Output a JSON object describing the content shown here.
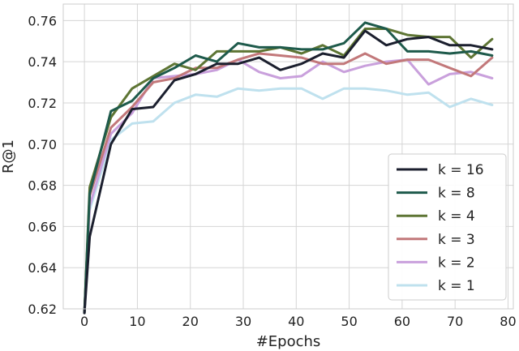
{
  "chart_data": {
    "type": "line",
    "xlabel": "#Epochs",
    "ylabel": "R@1",
    "xlim": [
      -4,
      81
    ],
    "ylim": [
      0.62,
      0.768
    ],
    "xticks": [
      "0",
      "10",
      "20",
      "30",
      "40",
      "50",
      "60",
      "70",
      "80"
    ],
    "yticks": [
      "0.62",
      "0.64",
      "0.66",
      "0.68",
      "0.70",
      "0.72",
      "0.74",
      "0.76"
    ],
    "grid": true,
    "legend": "lower-right",
    "x": [
      0,
      1,
      5,
      9,
      13,
      17,
      21,
      25,
      29,
      33,
      37,
      41,
      45,
      49,
      53,
      57,
      61,
      65,
      69,
      73,
      77
    ],
    "series": [
      {
        "name": "k = 16",
        "color": "#1b1f2e",
        "values": [
          0.618,
          0.655,
          0.7,
          0.717,
          0.718,
          0.731,
          0.734,
          0.739,
          0.739,
          0.742,
          0.736,
          0.739,
          0.744,
          0.742,
          0.755,
          0.748,
          0.751,
          0.752,
          0.748,
          0.748,
          0.746
        ]
      },
      {
        "name": "k = 8",
        "color": "#1e5a4b",
        "values": [
          0.618,
          0.676,
          0.716,
          0.721,
          0.732,
          0.737,
          0.743,
          0.74,
          0.749,
          0.747,
          0.747,
          0.746,
          0.746,
          0.749,
          0.759,
          0.756,
          0.745,
          0.745,
          0.744,
          0.745,
          0.743
        ]
      },
      {
        "name": "k = 4",
        "color": "#5e7534",
        "values": [
          0.618,
          0.679,
          0.713,
          0.727,
          0.733,
          0.739,
          0.736,
          0.745,
          0.745,
          0.745,
          0.747,
          0.744,
          0.748,
          0.743,
          0.756,
          0.756,
          0.753,
          0.752,
          0.752,
          0.742,
          0.751
        ]
      },
      {
        "name": "k = 3",
        "color": "#c2787a",
        "values": [
          0.618,
          0.675,
          0.708,
          0.718,
          0.73,
          0.732,
          0.737,
          0.737,
          0.741,
          0.744,
          0.743,
          0.742,
          0.739,
          0.739,
          0.744,
          0.739,
          0.741,
          0.741,
          0.737,
          0.733,
          0.742
        ]
      },
      {
        "name": "k = 2",
        "color": "#c9a0dc",
        "values": [
          0.618,
          0.67,
          0.705,
          0.715,
          0.732,
          0.733,
          0.734,
          0.736,
          0.741,
          0.735,
          0.732,
          0.733,
          0.74,
          0.735,
          0.738,
          0.74,
          0.741,
          0.729,
          0.734,
          0.735,
          0.732
        ]
      },
      {
        "name": "k = 1",
        "color": "#bfe1ee",
        "values": [
          0.618,
          0.668,
          0.702,
          0.71,
          0.711,
          0.72,
          0.724,
          0.723,
          0.727,
          0.726,
          0.727,
          0.727,
          0.722,
          0.727,
          0.727,
          0.726,
          0.724,
          0.725,
          0.718,
          0.722,
          0.719
        ]
      }
    ]
  }
}
